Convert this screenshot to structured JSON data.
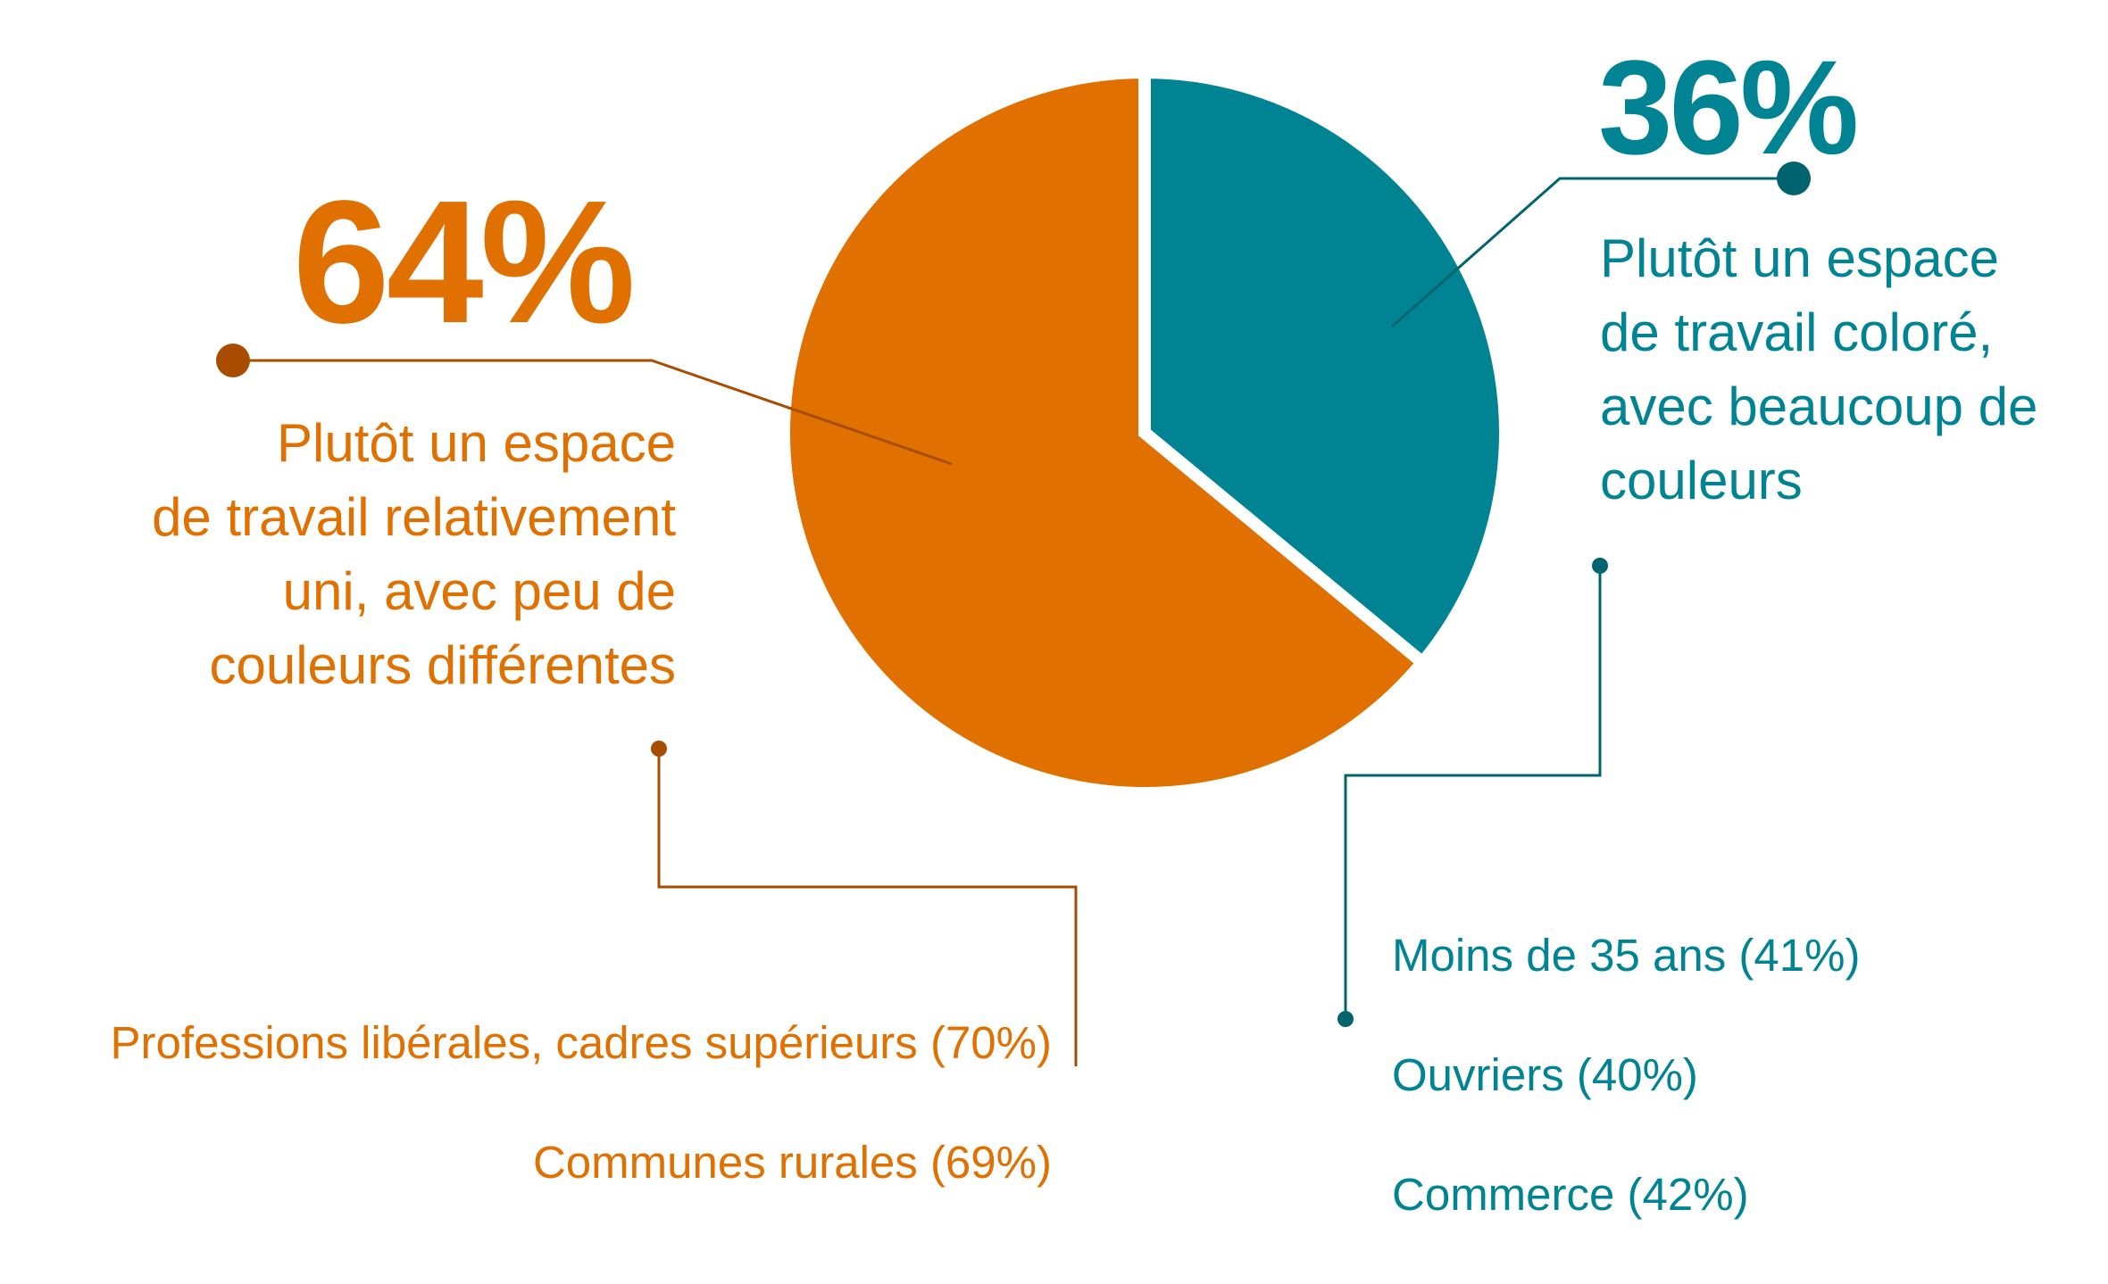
{
  "chart_data": {
    "type": "pie",
    "categories": [
      "Plutôt un espace\nde travail coloré,\navec beaucoup de\ncouleurs",
      "Plutôt un espace\nde travail relativement\nuni, avec peu de\ncouleurs différentes"
    ],
    "values": [
      36,
      64
    ],
    "value_labels": [
      "36%",
      "64%"
    ],
    "colors": [
      "#008494",
      "#e07000"
    ],
    "annotations": [
      [
        "Moins de 35 ans (41%)",
        "Ouvriers (40%)",
        "Commerce (42%)"
      ],
      [
        "Professions libérales, cadres supérieurs (70%)",
        "Communes rurales (69%)"
      ]
    ]
  }
}
